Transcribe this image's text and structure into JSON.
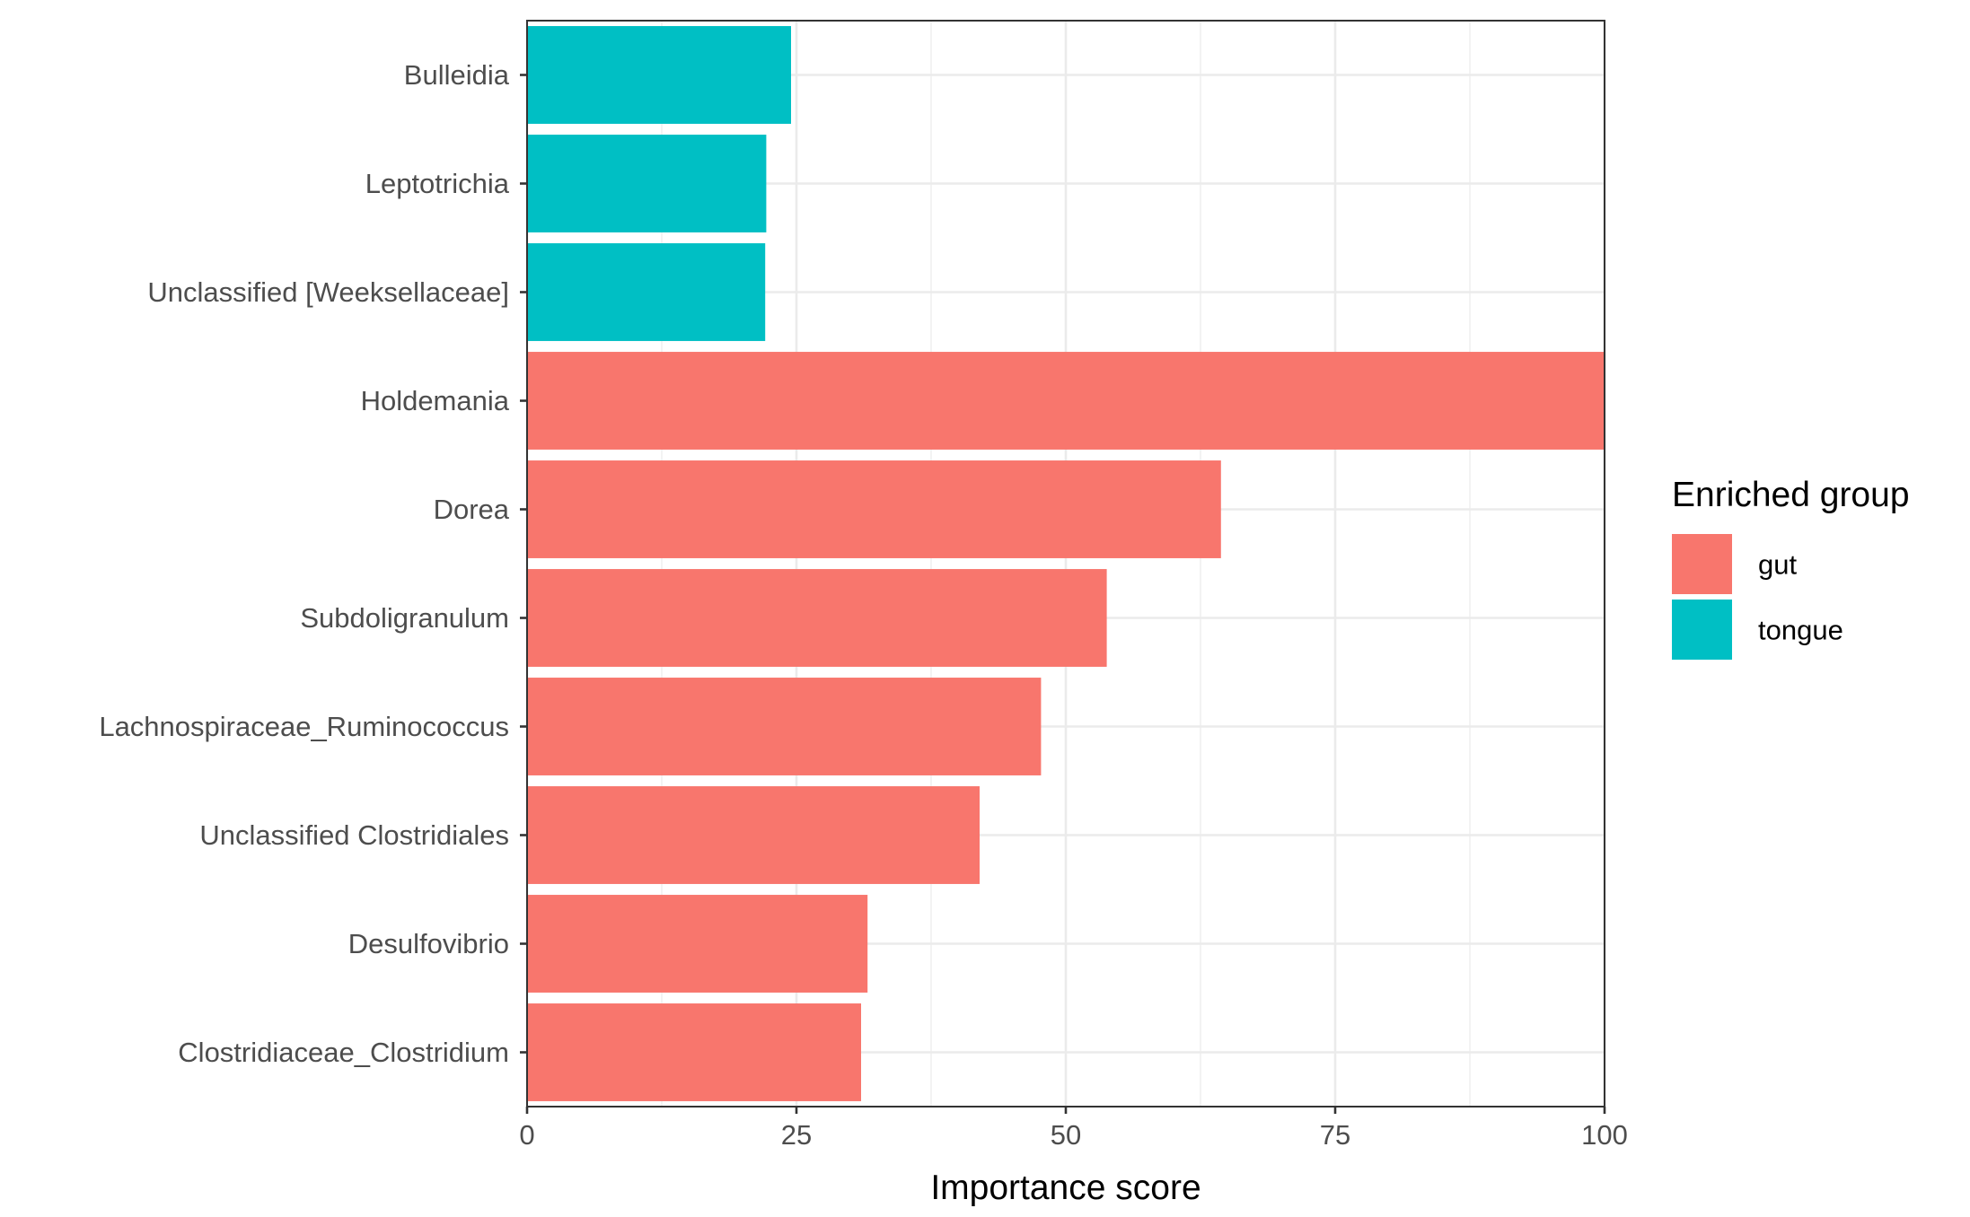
{
  "chart_data": {
    "type": "bar",
    "orientation": "horizontal",
    "categories": [
      "Bulleidia",
      "Leptotrichia",
      "Unclassified [Weeksellaceae]",
      "Holdemania",
      "Dorea",
      "Subdoligranulum",
      "Lachnospiraceae_Ruminococcus",
      "Unclassified Clostridiales",
      "Desulfovibrio",
      "Clostridiaceae_Clostridium"
    ],
    "values": [
      24.5,
      22.2,
      22.1,
      100,
      64.4,
      53.8,
      47.7,
      42.0,
      31.6,
      31.0
    ],
    "groups": [
      "tongue",
      "tongue",
      "tongue",
      "gut",
      "gut",
      "gut",
      "gut",
      "gut",
      "gut",
      "gut"
    ],
    "xlabel": "Importance score",
    "ylabel": "",
    "xlim": [
      0,
      100
    ],
    "xticks": [
      0,
      25,
      50,
      75,
      100
    ],
    "xtick_labels": [
      "0",
      "25",
      "50",
      "75",
      "100"
    ],
    "grid": true,
    "legend": {
      "title": "Enriched group",
      "placement": "right",
      "entries": [
        {
          "label": "gut",
          "color": "#F8766D"
        },
        {
          "label": "tongue",
          "color": "#00BFC4"
        }
      ]
    },
    "colors": {
      "gut": "#F8766D",
      "tongue": "#00BFC4"
    }
  }
}
